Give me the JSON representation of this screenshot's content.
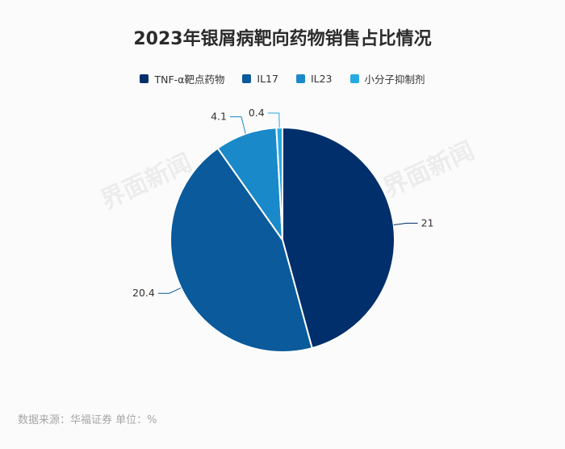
{
  "title": "2023年银屑病靶向药物销售占比情况",
  "footer": {
    "source": "数据来源：华福证券",
    "unit": "单位：%"
  },
  "watermark": "界面新闻",
  "chart_data": {
    "type": "pie",
    "title": "2023年银屑病靶向药物销售占比情况",
    "unit": "%",
    "legend_position": "top",
    "slices": [
      {
        "label": "TNF-α靶点药物",
        "value": 21,
        "value_label": "21",
        "color": "#002f6c"
      },
      {
        "label": "IL17",
        "value": 20.4,
        "value_label": "20.4",
        "color": "#0a5a9c"
      },
      {
        "label": "IL23",
        "value": 4.1,
        "value_label": "4.1",
        "color": "#1a89c9"
      },
      {
        "label": "小分子抑制剂",
        "value": 0.4,
        "value_label": "0.4",
        "color": "#27a9e1"
      }
    ]
  }
}
